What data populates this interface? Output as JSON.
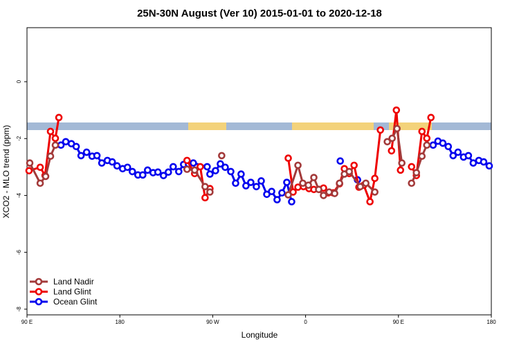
{
  "chart_data": {
    "type": "line",
    "title": "25N-30N August (Ver 10)   2015-01-01 to 2020-12-18",
    "x_label": "Longitude",
    "y_label": "XCO2 - MLO trend (ppm)",
    "xlim": [
      90,
      540
    ],
    "ylim": [
      -8.2,
      1.9
    ],
    "xticks": [
      {
        "value": 90,
        "label": "90 E"
      },
      180,
      {
        "value": 270,
        "label": "90 W"
      },
      {
        "value": 360,
        "label": "0"
      },
      {
        "value": 450,
        "label": "90 E"
      },
      {
        "value": 540,
        "label": "180"
      }
    ],
    "yticks": [
      -8,
      -6,
      -4,
      -2,
      0
    ],
    "legend": "bottomleft",
    "series": [
      {
        "name": "Land Nadir",
        "color": "#a33a3a",
        "x": [
          92.7,
          102.8,
          108.1,
          112.8,
          117.5,
          null,
          245.1,
          252.5,
          262.6,
          267.3,
          null,
          278.7,
          null,
          343.2,
          352.6,
          357.3,
          362.7,
          368.0,
          372.7,
          377.4,
          382.8,
          388.2,
          392.9,
          397.6,
          402.3,
          413.0,
          418.4,
          427.1,
          null,
          439.2,
          443.9,
          448.6,
          453.3,
          null,
          462.7,
          467.4,
          472.8,
          477.5
        ],
        "values": [
          -2.86,
          -3.57,
          -3.33,
          -2.62,
          -2.23,
          null,
          -3.08,
          -3.11,
          -3.69,
          -3.88,
          null,
          -2.6,
          null,
          -3.98,
          -2.94,
          -3.57,
          -3.64,
          -3.37,
          -3.79,
          -4.0,
          -3.88,
          -3.93,
          -3.57,
          -3.25,
          -3.16,
          -3.69,
          -3.57,
          -3.88,
          null,
          -2.11,
          -1.99,
          -1.65,
          -2.86,
          null,
          -3.57,
          -3.2,
          -2.62,
          -2.23
        ]
      },
      {
        "name": "Land Glint",
        "color": "#ee0000",
        "x": [
          92.0,
          102.8,
          107.5,
          112.8,
          117.5,
          120.9,
          null,
          245.1,
          252.5,
          257.9,
          262.6,
          267.3,
          null,
          343.2,
          347.9,
          352.6,
          358.0,
          363.3,
          368.0,
          373.4,
          377.4,
          382.1,
          386.8,
          392.9,
          397.6,
          402.3,
          407.0,
          411.7,
          416.4,
          422.4,
          427.1,
          432.5,
          null,
          443.3,
          448.0,
          452.0,
          null,
          462.7,
          467.4,
          472.8,
          477.5,
          481.5
        ],
        "values": [
          -3.13,
          -3.01,
          -3.3,
          -1.75,
          -1.99,
          -1.26,
          null,
          -2.77,
          -3.23,
          -2.99,
          -4.08,
          -3.76,
          null,
          -2.69,
          -3.88,
          -3.71,
          -3.69,
          -3.76,
          -3.79,
          -3.79,
          -3.74,
          -3.91,
          -3.91,
          -3.59,
          -3.06,
          -3.23,
          -2.94,
          -3.71,
          -3.64,
          -4.22,
          -3.4,
          -1.7,
          null,
          -2.43,
          -1.0,
          -3.11,
          null,
          -2.99,
          -3.3,
          -1.75,
          -1.99,
          -1.26
        ]
      },
      {
        "name": "Ocean Glint",
        "color": "#0000ee",
        "x": [
          122.9,
          127.6,
          133.0,
          137.7,
          142.4,
          147.8,
          153.1,
          157.8,
          162.5,
          167.9,
          172.6,
          177.3,
          182.7,
          187.4,
          192.1,
          197.5,
          202.2,
          206.9,
          212.2,
          216.9,
          222.3,
          227.0,
          231.7,
          237.1,
          241.8,
          246.5,
          251.2,
          264.6,
          267.3,
          272.7,
          277.4,
          282.1,
          287.5,
          292.2,
          297.5,
          302.2,
          306.9,
          312.3,
          317.0,
          322.4,
          327.1,
          332.4,
          337.1,
          341.8,
          346.5,
          null,
          393.6,
          null,
          410.3,
          null,
          483.6,
          488.3,
          493.0,
          498.3,
          503.0,
          507.7,
          513.1,
          517.8,
          522.5,
          527.9,
          532.6,
          538.0
        ],
        "values": [
          -2.23,
          -2.11,
          -2.18,
          -2.28,
          -2.6,
          -2.48,
          -2.62,
          -2.6,
          -2.86,
          -2.77,
          -2.82,
          -2.96,
          -3.06,
          -3.01,
          -3.16,
          -3.28,
          -3.28,
          -3.11,
          -3.2,
          -3.18,
          -3.3,
          -3.18,
          -2.99,
          -3.16,
          -2.91,
          -2.89,
          -2.86,
          -2.99,
          -3.25,
          -3.13,
          -2.89,
          -3.01,
          -3.16,
          -3.57,
          -3.25,
          -3.66,
          -3.54,
          -3.69,
          -3.49,
          -3.96,
          -3.86,
          -4.15,
          -3.91,
          -3.54,
          -4.22,
          null,
          -2.79,
          null,
          -3.45,
          null,
          -2.23,
          -2.09,
          -2.16,
          -2.28,
          -2.6,
          -2.48,
          -2.65,
          -2.6,
          -2.86,
          -2.77,
          -2.82,
          -2.96
        ]
      }
    ]
  }
}
